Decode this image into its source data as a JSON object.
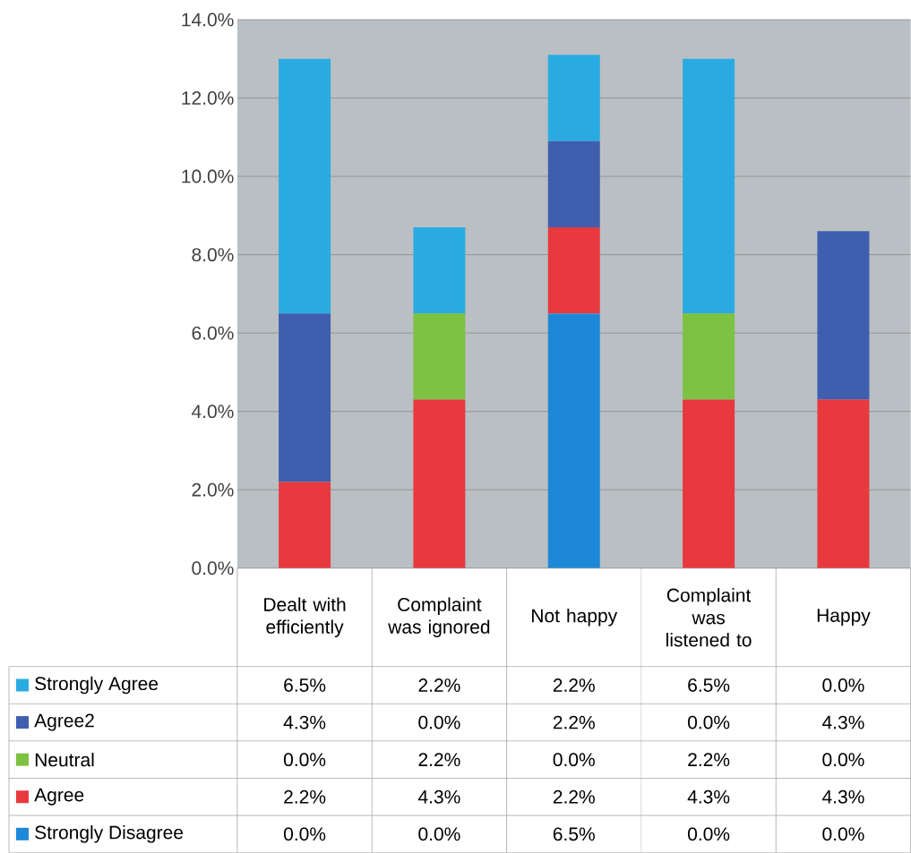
{
  "chart_data": {
    "type": "bar",
    "stacked": true,
    "grid": "y",
    "legend": "bottom",
    "categories": [
      "Dealt with efficiently",
      "Complaint was ignored",
      "Not happy",
      "Complaint was listened to",
      "Happy"
    ],
    "ylim": [
      0,
      14
    ],
    "yticks": [
      {
        "value": 0,
        "label": "0.0%"
      },
      {
        "value": 2,
        "label": "2.0%"
      },
      {
        "value": 4,
        "label": "4.0%"
      },
      {
        "value": 6,
        "label": "6.0%"
      },
      {
        "value": 8,
        "label": "8.0%"
      },
      {
        "value": 10,
        "label": "10.0%"
      },
      {
        "value": 12,
        "label": "12.0%"
      },
      {
        "value": 14,
        "label": "14.0%"
      }
    ],
    "series": [
      {
        "name": "Strongly Disagree",
        "color": "#1e88d8",
        "values": [
          0.0,
          0.0,
          6.5,
          0.0,
          0.0
        ],
        "value_labels": [
          "0.0%",
          "0.0%",
          "6.5%",
          "0.0%",
          "0.0%"
        ]
      },
      {
        "name": "Agree",
        "color": "#e8393f",
        "values": [
          2.2,
          4.3,
          2.2,
          4.3,
          4.3
        ],
        "value_labels": [
          "2.2%",
          "4.3%",
          "2.2%",
          "4.3%",
          "4.3%"
        ]
      },
      {
        "name": "Neutral",
        "color": "#7dc242",
        "values": [
          0.0,
          2.2,
          0.0,
          2.2,
          0.0
        ],
        "value_labels": [
          "0.0%",
          "2.2%",
          "0.0%",
          "2.2%",
          "0.0%"
        ]
      },
      {
        "name": "Agree2",
        "color": "#3f5fae",
        "values": [
          4.3,
          0.0,
          2.2,
          0.0,
          4.3
        ],
        "value_labels": [
          "4.3%",
          "0.0%",
          "2.2%",
          "0.0%",
          "4.3%"
        ]
      },
      {
        "name": "Strongly Agree",
        "color": "#29abe2",
        "values": [
          6.5,
          2.2,
          2.2,
          6.5,
          0.0
        ],
        "value_labels": [
          "6.5%",
          "2.2%",
          "2.2%",
          "6.5%",
          "0.0%"
        ]
      }
    ]
  }
}
